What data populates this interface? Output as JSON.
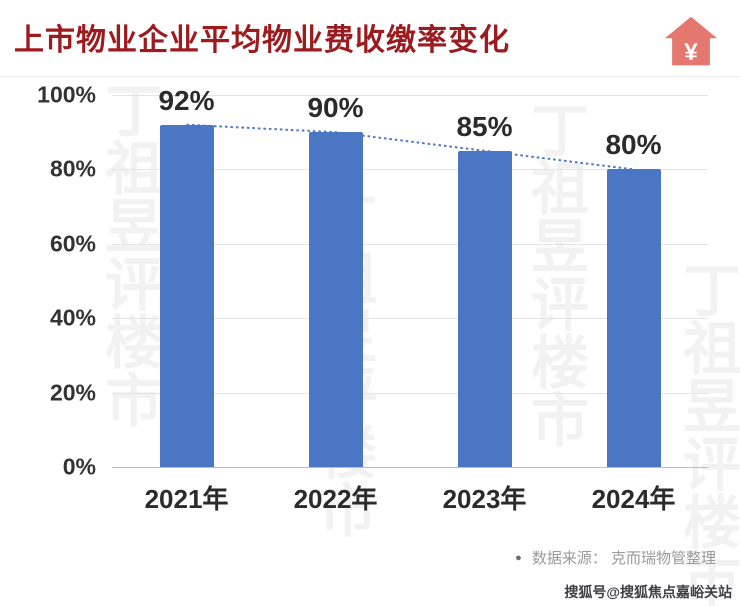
{
  "header": {
    "title": "上市物业企业平均物业费收缴率变化",
    "accent_color": "#9c1b1e",
    "icon": {
      "name": "house-yen-icon",
      "symbol": "¥",
      "color": "#e5786e"
    }
  },
  "chart_data": {
    "type": "bar",
    "title": "上市物业企业平均物业费收缴率变化",
    "categories": [
      "2021年",
      "2022年",
      "2023年",
      "2024年"
    ],
    "values": [
      92,
      90,
      85,
      80
    ],
    "value_labels": [
      "92%",
      "90%",
      "85%",
      "80%"
    ],
    "yticks": [
      "100%",
      "80%",
      "60%",
      "40%",
      "20%",
      "0%"
    ],
    "ylim": [
      0,
      100
    ],
    "grid": true,
    "bar_color": "#4a76c4",
    "trendline": {
      "style": "dotted",
      "color": "#4a76c4"
    },
    "legend": "none"
  },
  "footer": {
    "bullet": "●",
    "source": "数据来源： 克而瑞物管整理"
  },
  "watermark": {
    "background_text": "丁祖昱评楼市",
    "corner_text": "搜狐号@搜狐焦点嘉峪关站"
  }
}
